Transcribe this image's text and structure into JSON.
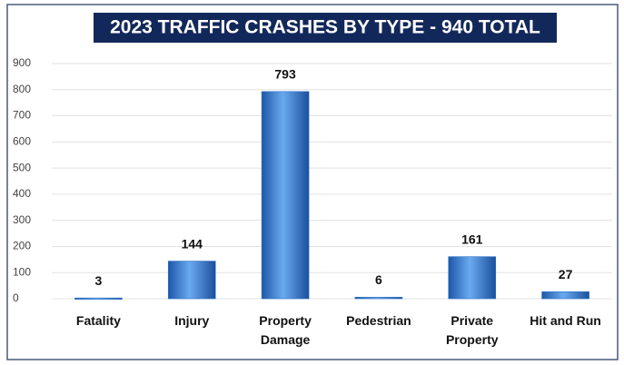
{
  "chart_data": {
    "type": "bar",
    "title": "2023 TRAFFIC CRASHES BY TYPE - 940 TOTAL",
    "categories": [
      "Fatality",
      "Injury",
      "Property Damage",
      "Pedestrian",
      "Private Property",
      "Hit and Run"
    ],
    "values": [
      3,
      144,
      793,
      6,
      161,
      27
    ],
    "color": "#2f74c9",
    "ylim": [
      0,
      900
    ],
    "yticks": [
      0,
      100,
      200,
      300,
      400,
      500,
      600,
      700,
      800,
      900
    ],
    "grid": true
  }
}
